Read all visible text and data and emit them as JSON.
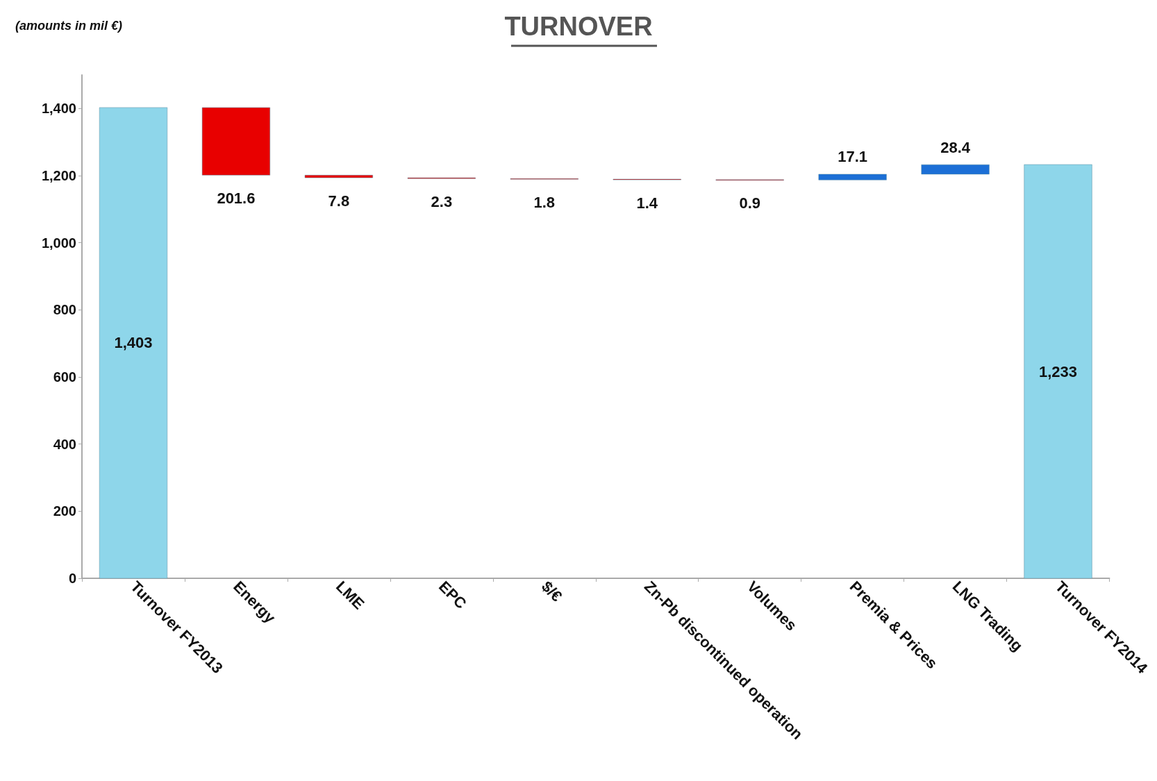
{
  "chart_data": {
    "type": "bar",
    "title": "TURNOVER",
    "annotations": [
      "(amounts in mil €)"
    ],
    "categories": [
      "Turnover FY2013",
      "Energy",
      "LME",
      "EPC",
      "$/€",
      "Zn-Pb discontinued operation",
      "Volumes",
      "Premia & Prices",
      "LNG Trading",
      "Turnover FY2014"
    ],
    "values": [
      1403,
      201.6,
      7.8,
      2.3,
      1.8,
      1.4,
      0.9,
      17.1,
      28.4,
      1233
    ],
    "base": [
      0,
      1201.4,
      1193.6,
      1191.3,
      1189.5,
      1188.1,
      1187.2,
      1187.2,
      1204.3,
      0
    ],
    "colors": [
      "#8ed6ea",
      "#e80000",
      "#e80000",
      "#e80000",
      "#e80000",
      "#e80000",
      "#e80000",
      "#1c6fd6",
      "#1c6fd6",
      "#8ed6ea"
    ],
    "value_labels": [
      "1,403",
      "201.6",
      "7.8",
      "2.3",
      "1.8",
      "1.4",
      "0.9",
      "17.1",
      "28.4",
      "1,233"
    ],
    "grid": false,
    "ylim": [
      0,
      1500
    ],
    "yticks": [
      0,
      200,
      400,
      600,
      800,
      {
        "value": 1000,
        "label": "1,000"
      },
      {
        "value": 1200,
        "label": "1,200"
      },
      {
        "value": 1400,
        "label": "1,400"
      }
    ]
  }
}
